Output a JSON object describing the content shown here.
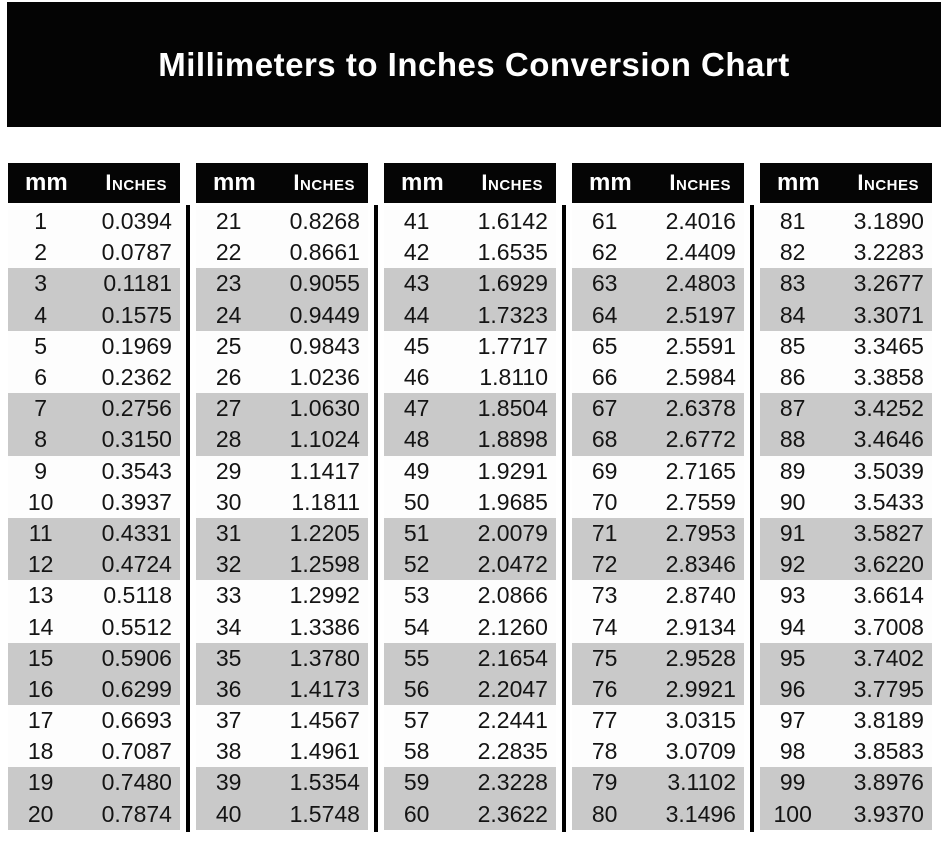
{
  "title": "Millimeters to Inches Conversion Chart",
  "colors": {
    "banner_bg": "#040404",
    "header_bg": "#050505",
    "header_text": "#ffffff",
    "band_gray": "#c9c9c9",
    "row_white": "#fdfdfd",
    "data_text": "#141414"
  },
  "chart_data": {
    "type": "table",
    "title": "Millimeters to Inches Conversion Chart",
    "column_headers": [
      "mm",
      "Inches"
    ],
    "layout": "5 side-by-side sub-tables, rows shaded gray in alternating pairs",
    "columns": [
      {
        "rows": [
          [
            "1",
            "0.0394"
          ],
          [
            "2",
            "0.0787"
          ],
          [
            "3",
            "0.1181"
          ],
          [
            "4",
            "0.1575"
          ],
          [
            "5",
            "0.1969"
          ],
          [
            "6",
            "0.2362"
          ],
          [
            "7",
            "0.2756"
          ],
          [
            "8",
            "0.3150"
          ],
          [
            "9",
            "0.3543"
          ],
          [
            "10",
            "0.3937"
          ],
          [
            "11",
            "0.4331"
          ],
          [
            "12",
            "0.4724"
          ],
          [
            "13",
            "0.5118"
          ],
          [
            "14",
            "0.5512"
          ],
          [
            "15",
            "0.5906"
          ],
          [
            "16",
            "0.6299"
          ],
          [
            "17",
            "0.6693"
          ],
          [
            "18",
            "0.7087"
          ],
          [
            "19",
            "0.7480"
          ],
          [
            "20",
            "0.7874"
          ]
        ]
      },
      {
        "rows": [
          [
            "21",
            "0.8268"
          ],
          [
            "22",
            "0.8661"
          ],
          [
            "23",
            "0.9055"
          ],
          [
            "24",
            "0.9449"
          ],
          [
            "25",
            "0.9843"
          ],
          [
            "26",
            "1.0236"
          ],
          [
            "27",
            "1.0630"
          ],
          [
            "28",
            "1.1024"
          ],
          [
            "29",
            "1.1417"
          ],
          [
            "30",
            "1.1811"
          ],
          [
            "31",
            "1.2205"
          ],
          [
            "32",
            "1.2598"
          ],
          [
            "33",
            "1.2992"
          ],
          [
            "34",
            "1.3386"
          ],
          [
            "35",
            "1.3780"
          ],
          [
            "36",
            "1.4173"
          ],
          [
            "37",
            "1.4567"
          ],
          [
            "38",
            "1.4961"
          ],
          [
            "39",
            "1.5354"
          ],
          [
            "40",
            "1.5748"
          ]
        ]
      },
      {
        "rows": [
          [
            "41",
            "1.6142"
          ],
          [
            "42",
            "1.6535"
          ],
          [
            "43",
            "1.6929"
          ],
          [
            "44",
            "1.7323"
          ],
          [
            "45",
            "1.7717"
          ],
          [
            "46",
            "1.8110"
          ],
          [
            "47",
            "1.8504"
          ],
          [
            "48",
            "1.8898"
          ],
          [
            "49",
            "1.9291"
          ],
          [
            "50",
            "1.9685"
          ],
          [
            "51",
            "2.0079"
          ],
          [
            "52",
            "2.0472"
          ],
          [
            "53",
            "2.0866"
          ],
          [
            "54",
            "2.1260"
          ],
          [
            "55",
            "2.1654"
          ],
          [
            "56",
            "2.2047"
          ],
          [
            "57",
            "2.2441"
          ],
          [
            "58",
            "2.2835"
          ],
          [
            "59",
            "2.3228"
          ],
          [
            "60",
            "2.3622"
          ]
        ]
      },
      {
        "rows": [
          [
            "61",
            "2.4016"
          ],
          [
            "62",
            "2.4409"
          ],
          [
            "63",
            "2.4803"
          ],
          [
            "64",
            "2.5197"
          ],
          [
            "65",
            "2.5591"
          ],
          [
            "66",
            "2.5984"
          ],
          [
            "67",
            "2.6378"
          ],
          [
            "68",
            "2.6772"
          ],
          [
            "69",
            "2.7165"
          ],
          [
            "70",
            "2.7559"
          ],
          [
            "71",
            "2.7953"
          ],
          [
            "72",
            "2.8346"
          ],
          [
            "73",
            "2.8740"
          ],
          [
            "74",
            "2.9134"
          ],
          [
            "75",
            "2.9528"
          ],
          [
            "76",
            "2.9921"
          ],
          [
            "77",
            "3.0315"
          ],
          [
            "78",
            "3.0709"
          ],
          [
            "79",
            "3.1102"
          ],
          [
            "80",
            "3.1496"
          ]
        ]
      },
      {
        "rows": [
          [
            "81",
            "3.1890"
          ],
          [
            "82",
            "3.2283"
          ],
          [
            "83",
            "3.2677"
          ],
          [
            "84",
            "3.3071"
          ],
          [
            "85",
            "3.3465"
          ],
          [
            "86",
            "3.3858"
          ],
          [
            "87",
            "3.4252"
          ],
          [
            "88",
            "3.4646"
          ],
          [
            "89",
            "3.5039"
          ],
          [
            "90",
            "3.5433"
          ],
          [
            "91",
            "3.5827"
          ],
          [
            "92",
            "3.6220"
          ],
          [
            "93",
            "3.6614"
          ],
          [
            "94",
            "3.7008"
          ],
          [
            "95",
            "3.7402"
          ],
          [
            "96",
            "3.7795"
          ],
          [
            "97",
            "3.8189"
          ],
          [
            "98",
            "3.8583"
          ],
          [
            "99",
            "3.8976"
          ],
          [
            "100",
            "3.9370"
          ]
        ]
      }
    ]
  }
}
